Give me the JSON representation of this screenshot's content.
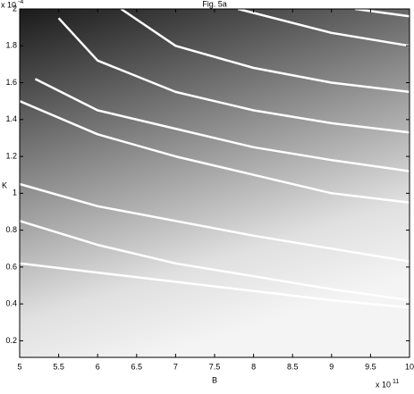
{
  "chart_data": {
    "type": "contour",
    "title": "Fig. 5a",
    "x_label": "B",
    "y_label": "K",
    "x_multiplier": {
      "base": "x 10",
      "exponent": "11"
    },
    "y_multiplier": {
      "base": "x 10",
      "exponent": "-4"
    },
    "xlim": [
      5,
      10
    ],
    "xticks": [
      5,
      5.5,
      6,
      6.5,
      7,
      7.5,
      8,
      8.5,
      9,
      9.5,
      10
    ],
    "ylim": [
      0.11,
      2
    ],
    "yticks": [
      0.2,
      0.4,
      0.6,
      0.8,
      1,
      1.2,
      1.4,
      1.6,
      1.8,
      2
    ],
    "series": [
      {
        "color": "#ffffff",
        "x": [
          5,
          6,
          7,
          8,
          9,
          10
        ],
        "values": [
          0.62,
          0.57,
          0.52,
          0.47,
          0.42,
          0.38
        ]
      },
      {
        "color": "#ffffff",
        "x": [
          5,
          6,
          7,
          8,
          9,
          10
        ],
        "values": [
          0.85,
          0.72,
          0.62,
          0.55,
          0.48,
          0.42
        ]
      },
      {
        "color": "#ffffff",
        "x": [
          5,
          6,
          7,
          8,
          9,
          10
        ],
        "values": [
          1.05,
          0.93,
          0.85,
          0.77,
          0.7,
          0.63
        ]
      },
      {
        "color": "#ffffff",
        "x": [
          5,
          6,
          7,
          8,
          9,
          10
        ],
        "values": [
          1.5,
          1.32,
          1.2,
          1.1,
          1.0,
          0.95
        ]
      },
      {
        "color": "#ffffff",
        "x": [
          5.2,
          6,
          7,
          8,
          9,
          10
        ],
        "values": [
          1.62,
          1.45,
          1.35,
          1.25,
          1.18,
          1.12
        ]
      },
      {
        "color": "#ffffff",
        "x": [
          5.5,
          6,
          7,
          8,
          9,
          10
        ],
        "values": [
          1.95,
          1.72,
          1.55,
          1.45,
          1.38,
          1.33
        ]
      },
      {
        "color": "#ffffff",
        "x": [
          6.3,
          7,
          8,
          9,
          10
        ],
        "values": [
          2,
          1.8,
          1.68,
          1.6,
          1.55
        ]
      },
      {
        "color": "#ffffff",
        "x": [
          7.8,
          9,
          10
        ],
        "values": [
          2,
          1.87,
          1.8
        ]
      },
      {
        "color": "#ffffff",
        "x": [
          9.3,
          10
        ],
        "values": [
          2,
          1.96
        ]
      }
    ]
  }
}
